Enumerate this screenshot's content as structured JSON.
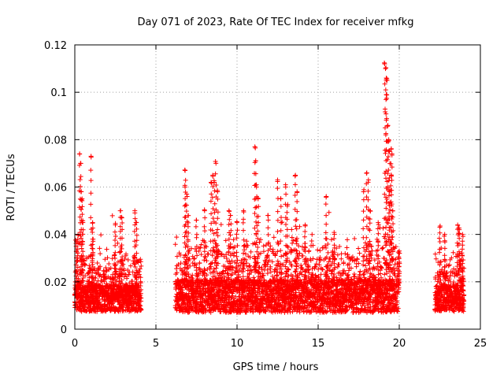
{
  "chart_data": {
    "type": "scatter",
    "title": "Day 071 of 2023, Rate Of TEC Index for receiver mfkg",
    "xlabel": "GPS time / hours",
    "ylabel": "ROTI / TECUs",
    "xlim": [
      0,
      25
    ],
    "ylim": [
      0,
      0.12
    ],
    "x_ticks": [
      0,
      5,
      10,
      15,
      20,
      25
    ],
    "x_tick_labels": [
      "0",
      "5",
      "10",
      "15",
      "20",
      "25"
    ],
    "y_ticks": [
      0,
      0.02,
      0.04,
      0.06,
      0.08,
      0.1,
      0.12
    ],
    "y_tick_labels": [
      "0",
      "0.02",
      "0.04",
      "0.06",
      "0.08",
      "0.1",
      "0.12"
    ],
    "grid": true,
    "marker": "plus",
    "color": "#ff0000",
    "series": [
      {
        "segments": [
          {
            "x0": 0.0,
            "x1": 4.1,
            "base": 0.013,
            "spread": 0.008
          },
          {
            "x0": 6.2,
            "x1": 20.0,
            "base": 0.014,
            "spread": 0.01
          },
          {
            "x0": 22.2,
            "x1": 24.0,
            "base": 0.013,
            "spread": 0.008
          }
        ],
        "peaks": [
          {
            "x": 0.1,
            "y": 0.037
          },
          {
            "x": 0.2,
            "y": 0.04
          },
          {
            "x": 0.3,
            "y": 0.074
          },
          {
            "x": 0.35,
            "y": 0.07
          },
          {
            "x": 0.4,
            "y": 0.058
          },
          {
            "x": 0.45,
            "y": 0.055
          },
          {
            "x": 0.5,
            "y": 0.045
          },
          {
            "x": 1.0,
            "y": 0.073
          },
          {
            "x": 1.1,
            "y": 0.045
          },
          {
            "x": 1.1,
            "y": 0.038
          },
          {
            "x": 2.5,
            "y": 0.044
          },
          {
            "x": 2.8,
            "y": 0.05
          },
          {
            "x": 2.9,
            "y": 0.047
          },
          {
            "x": 3.7,
            "y": 0.05
          },
          {
            "x": 3.8,
            "y": 0.045
          },
          {
            "x": 6.8,
            "y": 0.067
          },
          {
            "x": 6.8,
            "y": 0.06
          },
          {
            "x": 6.9,
            "y": 0.057
          },
          {
            "x": 7.0,
            "y": 0.048
          },
          {
            "x": 7.5,
            "y": 0.046
          },
          {
            "x": 8.0,
            "y": 0.05
          },
          {
            "x": 8.4,
            "y": 0.062
          },
          {
            "x": 8.5,
            "y": 0.065
          },
          {
            "x": 8.6,
            "y": 0.062
          },
          {
            "x": 8.7,
            "y": 0.07
          },
          {
            "x": 8.8,
            "y": 0.058
          },
          {
            "x": 9.5,
            "y": 0.05
          },
          {
            "x": 9.6,
            "y": 0.048
          },
          {
            "x": 10.0,
            "y": 0.045
          },
          {
            "x": 10.4,
            "y": 0.05
          },
          {
            "x": 11.1,
            "y": 0.077
          },
          {
            "x": 11.15,
            "y": 0.071
          },
          {
            "x": 11.2,
            "y": 0.06
          },
          {
            "x": 11.3,
            "y": 0.055
          },
          {
            "x": 11.9,
            "y": 0.048
          },
          {
            "x": 12.5,
            "y": 0.063
          },
          {
            "x": 12.7,
            "y": 0.055
          },
          {
            "x": 13.0,
            "y": 0.06
          },
          {
            "x": 13.1,
            "y": 0.052
          },
          {
            "x": 13.6,
            "y": 0.065
          },
          {
            "x": 13.7,
            "y": 0.058
          },
          {
            "x": 14.2,
            "y": 0.044
          },
          {
            "x": 15.5,
            "y": 0.056
          },
          {
            "x": 16.0,
            "y": 0.04
          },
          {
            "x": 17.8,
            "y": 0.058
          },
          {
            "x": 18.0,
            "y": 0.066
          },
          {
            "x": 18.1,
            "y": 0.063
          },
          {
            "x": 18.2,
            "y": 0.05
          },
          {
            "x": 18.7,
            "y": 0.045
          },
          {
            "x": 19.1,
            "y": 0.112
          },
          {
            "x": 19.15,
            "y": 0.11
          },
          {
            "x": 19.2,
            "y": 0.106
          },
          {
            "x": 19.25,
            "y": 0.105
          },
          {
            "x": 19.2,
            "y": 0.099
          },
          {
            "x": 19.3,
            "y": 0.086
          },
          {
            "x": 19.35,
            "y": 0.08
          },
          {
            "x": 19.4,
            "y": 0.075
          },
          {
            "x": 19.5,
            "y": 0.076
          },
          {
            "x": 19.55,
            "y": 0.074
          },
          {
            "x": 19.5,
            "y": 0.065
          },
          {
            "x": 19.4,
            "y": 0.058
          },
          {
            "x": 19.6,
            "y": 0.05
          },
          {
            "x": 20.0,
            "y": 0.033
          },
          {
            "x": 22.5,
            "y": 0.043
          },
          {
            "x": 22.8,
            "y": 0.04
          },
          {
            "x": 23.6,
            "y": 0.044
          },
          {
            "x": 23.7,
            "y": 0.042
          },
          {
            "x": 23.9,
            "y": 0.04
          }
        ]
      }
    ]
  }
}
